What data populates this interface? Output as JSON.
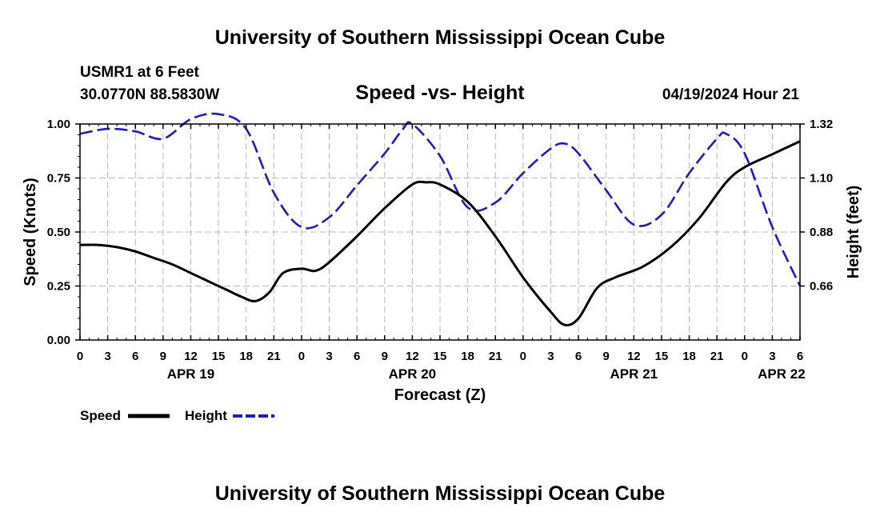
{
  "page": {
    "title_top": "University of Southern Mississippi Ocean Cube",
    "title_bottom": "University of Southern Mississippi Ocean Cube",
    "station": "USMR1 at 6 Feet",
    "coords": "30.0770N  88.5830W",
    "subtitle": "Speed -vs- Height",
    "datetime": "04/19/2024 Hour 21"
  },
  "chart_data": {
    "type": "line",
    "title": "Speed -vs- Height",
    "xlabel": "Forecast (Z)",
    "ylabel": "Speed (Knots)",
    "y2label": "Height (feet)",
    "x_range": [
      0,
      78
    ],
    "ylim": [
      0,
      1
    ],
    "y2lim": [
      0.44,
      1.32
    ],
    "y_ticks": [
      {
        "value": 0,
        "label": "0.00"
      },
      {
        "value": 0.25,
        "label": "0.25"
      },
      {
        "value": 0.5,
        "label": "0.50"
      },
      {
        "value": 0.75,
        "label": "0.75"
      },
      {
        "value": 1,
        "label": "1.00"
      }
    ],
    "y2_ticks": [
      {
        "value": 0.66,
        "label": "0.66"
      },
      {
        "value": 0.88,
        "label": "0.88"
      },
      {
        "value": 1.1,
        "label": "1.10"
      },
      {
        "value": 1.32,
        "label": "1.32"
      }
    ],
    "x_ticks": [
      {
        "hour": 0,
        "label": "0"
      },
      {
        "hour": 3,
        "label": "3"
      },
      {
        "hour": 6,
        "label": "6"
      },
      {
        "hour": 9,
        "label": "9"
      },
      {
        "hour": 12,
        "label": "12"
      },
      {
        "hour": 15,
        "label": "15"
      },
      {
        "hour": 18,
        "label": "18"
      },
      {
        "hour": 21,
        "label": "21"
      },
      {
        "hour": 24,
        "label": "0"
      },
      {
        "hour": 27,
        "label": "3"
      },
      {
        "hour": 30,
        "label": "6"
      },
      {
        "hour": 33,
        "label": "9"
      },
      {
        "hour": 36,
        "label": "12"
      },
      {
        "hour": 39,
        "label": "15"
      },
      {
        "hour": 42,
        "label": "18"
      },
      {
        "hour": 45,
        "label": "21"
      },
      {
        "hour": 48,
        "label": "0"
      },
      {
        "hour": 51,
        "label": "3"
      },
      {
        "hour": 54,
        "label": "6"
      },
      {
        "hour": 57,
        "label": "9"
      },
      {
        "hour": 60,
        "label": "12"
      },
      {
        "hour": 63,
        "label": "15"
      },
      {
        "hour": 66,
        "label": "18"
      },
      {
        "hour": 69,
        "label": "21"
      },
      {
        "hour": 72,
        "label": "0"
      },
      {
        "hour": 75,
        "label": "3"
      },
      {
        "hour": 78,
        "label": "6"
      }
    ],
    "date_labels": [
      {
        "hour": 12,
        "label": "APR 19"
      },
      {
        "hour": 36,
        "label": "APR 20"
      },
      {
        "hour": 60,
        "label": "APR 21"
      },
      {
        "hour": 76,
        "label": "APR 22"
      }
    ],
    "grid": true,
    "legend": [
      "Speed",
      "Height"
    ],
    "series": [
      {
        "name": "Speed",
        "axis": "left",
        "color": "#000000",
        "dash": "solid",
        "x": [
          0,
          2,
          4,
          6,
          8,
          10,
          12,
          14,
          16,
          17.5,
          19,
          20.5,
          22,
          24,
          25.5,
          27,
          30,
          33,
          36,
          37.5,
          39,
          42,
          45,
          48,
          51,
          52.5,
          54,
          56,
          58,
          61,
          64,
          67,
          70,
          72,
          75,
          78
        ],
        "values": [
          0.44,
          0.44,
          0.43,
          0.41,
          0.38,
          0.35,
          0.31,
          0.27,
          0.23,
          0.2,
          0.18,
          0.22,
          0.31,
          0.33,
          0.32,
          0.36,
          0.48,
          0.61,
          0.72,
          0.73,
          0.72,
          0.64,
          0.48,
          0.29,
          0.13,
          0.07,
          0.1,
          0.24,
          0.29,
          0.34,
          0.43,
          0.56,
          0.73,
          0.8,
          0.86,
          0.92
        ]
      },
      {
        "name": "Height",
        "axis": "right",
        "color": "#1c1ccf",
        "dash": "dashed",
        "x": [
          0,
          3,
          6,
          9,
          12,
          15,
          18,
          21,
          24,
          27,
          30,
          33,
          35,
          36,
          39,
          42,
          45,
          48,
          51,
          52.5,
          54,
          57,
          60,
          63,
          66,
          69,
          70,
          72,
          75,
          78
        ],
        "values": [
          1.28,
          1.3,
          1.29,
          1.26,
          1.34,
          1.36,
          1.3,
          1.04,
          0.9,
          0.94,
          1.07,
          1.2,
          1.3,
          1.32,
          1.19,
          0.98,
          1.0,
          1.12,
          1.22,
          1.24,
          1.2,
          1.05,
          0.91,
          0.95,
          1.12,
          1.26,
          1.28,
          1.2,
          0.9,
          0.66
        ]
      }
    ]
  }
}
